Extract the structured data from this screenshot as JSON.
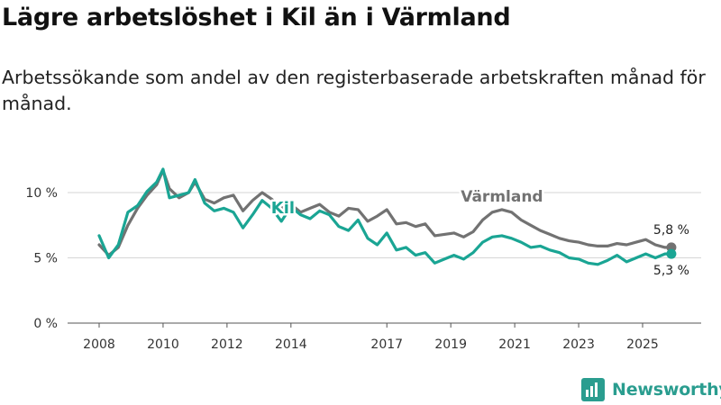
{
  "title": "Lägre arbetslöshet i Kil än i Värmland",
  "subtitle": "Arbetssökande som andel av den registerbaserade arbetskraften månad för månad.",
  "brand": {
    "name": "Newsworthy"
  },
  "colors": {
    "kil": "#1aa594",
    "varmland": "#727272",
    "grid": "#d6d6d6",
    "brand": "#2a9d8f"
  },
  "chart_data": {
    "type": "line",
    "x_unit": "year",
    "ylabel": "",
    "ylim": [
      0,
      12
    ],
    "y_ticks": [
      0,
      5,
      10
    ],
    "y_tick_labels": [
      "0 %",
      "5 %",
      "10 %"
    ],
    "x_ticks": [
      2008,
      2010,
      2012,
      2014,
      2017,
      2019,
      2021,
      2023,
      2025
    ],
    "x_tick_labels": [
      "2008",
      "2010",
      "2012",
      "2014",
      "2017",
      "2019",
      "2021",
      "2023",
      "2025"
    ],
    "series": [
      {
        "name": "Värmland",
        "color": "#727272",
        "end_label": "5,8 %",
        "label_anchor_x": 2020.6,
        "x": [
          2008.0,
          2008.3,
          2008.6,
          2008.9,
          2009.2,
          2009.5,
          2009.8,
          2010.0,
          2010.2,
          2010.5,
          2010.8,
          2011.0,
          2011.3,
          2011.6,
          2011.9,
          2012.2,
          2012.5,
          2012.8,
          2013.1,
          2013.4,
          2013.7,
          2014.0,
          2014.3,
          2014.6,
          2014.9,
          2015.2,
          2015.5,
          2015.8,
          2016.1,
          2016.4,
          2016.7,
          2017.0,
          2017.3,
          2017.6,
          2017.9,
          2018.2,
          2018.5,
          2018.8,
          2019.1,
          2019.4,
          2019.7,
          2020.0,
          2020.3,
          2020.6,
          2020.9,
          2021.2,
          2021.5,
          2021.8,
          2022.1,
          2022.4,
          2022.7,
          2023.0,
          2023.3,
          2023.6,
          2023.9,
          2024.2,
          2024.5,
          2024.8,
          2025.1,
          2025.4,
          2025.7,
          2025.9
        ],
        "values": [
          6.0,
          5.2,
          5.8,
          7.5,
          8.8,
          9.8,
          10.6,
          11.7,
          10.3,
          9.6,
          10.0,
          10.8,
          9.5,
          9.2,
          9.6,
          9.8,
          8.6,
          9.4,
          10.0,
          9.5,
          8.8,
          9.1,
          8.5,
          8.8,
          9.1,
          8.5,
          8.2,
          8.8,
          8.7,
          7.8,
          8.2,
          8.7,
          7.6,
          7.7,
          7.4,
          7.6,
          6.7,
          6.8,
          6.9,
          6.6,
          7.0,
          7.9,
          8.5,
          8.7,
          8.5,
          7.9,
          7.5,
          7.1,
          6.8,
          6.5,
          6.3,
          6.2,
          6.0,
          5.9,
          5.9,
          6.1,
          6.0,
          6.2,
          6.4,
          6.0,
          5.8,
          5.8
        ]
      },
      {
        "name": "Kil",
        "color": "#1aa594",
        "end_label": "5,3 %",
        "label_anchor_x": 2013.75,
        "x": [
          2008.0,
          2008.3,
          2008.6,
          2008.9,
          2009.2,
          2009.5,
          2009.8,
          2010.0,
          2010.2,
          2010.5,
          2010.8,
          2011.0,
          2011.3,
          2011.6,
          2011.9,
          2012.2,
          2012.5,
          2012.8,
          2013.1,
          2013.4,
          2013.7,
          2014.0,
          2014.3,
          2014.6,
          2014.9,
          2015.2,
          2015.5,
          2015.8,
          2016.1,
          2016.4,
          2016.7,
          2017.0,
          2017.3,
          2017.6,
          2017.9,
          2018.2,
          2018.5,
          2018.8,
          2019.1,
          2019.4,
          2019.7,
          2020.0,
          2020.3,
          2020.6,
          2020.9,
          2021.2,
          2021.5,
          2021.8,
          2022.1,
          2022.4,
          2022.7,
          2023.0,
          2023.3,
          2023.6,
          2023.9,
          2024.2,
          2024.5,
          2024.8,
          2025.1,
          2025.4,
          2025.7,
          2025.9
        ],
        "values": [
          6.7,
          5.0,
          6.0,
          8.5,
          9.0,
          10.1,
          10.8,
          11.8,
          9.6,
          9.8,
          10.0,
          11.0,
          9.2,
          8.6,
          8.8,
          8.5,
          7.3,
          8.3,
          9.4,
          8.8,
          7.8,
          8.9,
          8.3,
          8.0,
          8.6,
          8.3,
          7.4,
          7.1,
          7.9,
          6.5,
          6.0,
          6.9,
          5.6,
          5.8,
          5.2,
          5.4,
          4.6,
          4.9,
          5.2,
          4.9,
          5.4,
          6.2,
          6.6,
          6.7,
          6.5,
          6.2,
          5.8,
          5.9,
          5.6,
          5.4,
          5.0,
          4.9,
          4.6,
          4.5,
          4.8,
          5.2,
          4.7,
          5.0,
          5.3,
          5.0,
          5.3,
          5.3
        ]
      }
    ]
  }
}
